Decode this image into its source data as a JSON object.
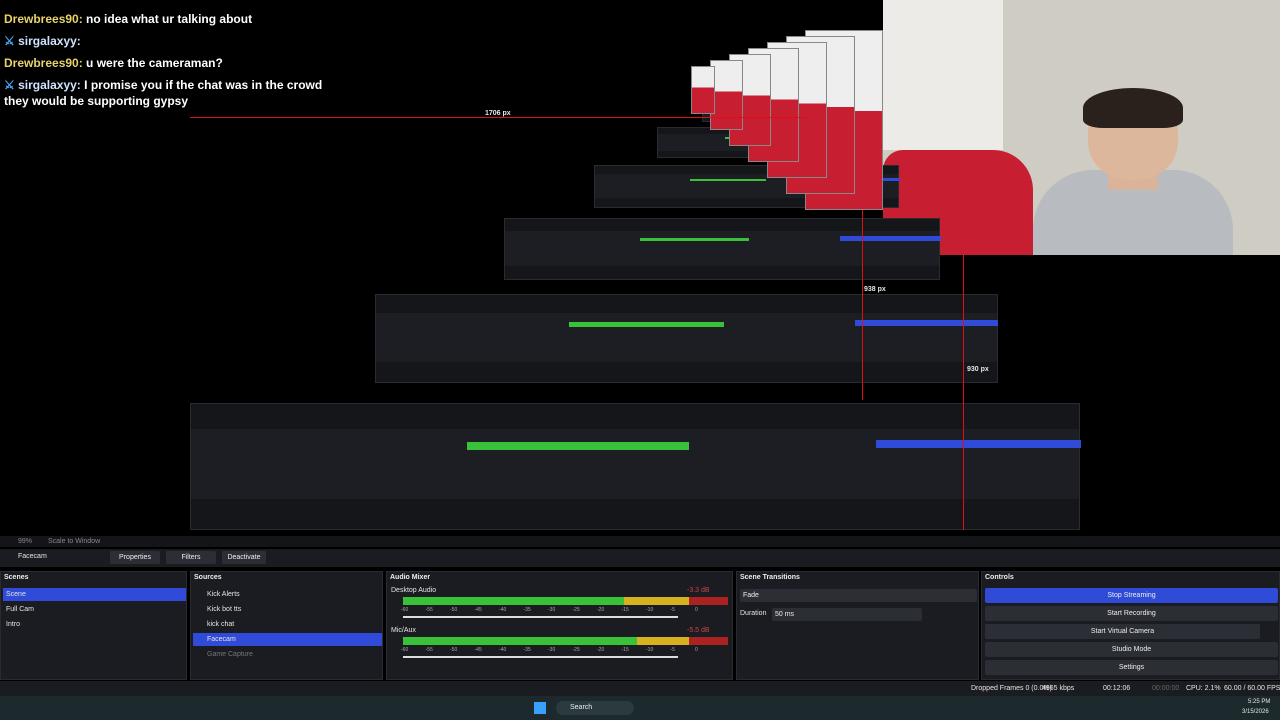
{
  "chat": [
    {
      "user": "Drewbrees90:",
      "text": "no idea what ur talking about"
    },
    {
      "user": "sirgalaxyy:"
    },
    {
      "user": "Drewbrees90:",
      "text": "u were the cameraman?"
    },
    {
      "user": "sirgalaxyy:",
      "text": "I promise you if the chat was in the crowd they would be supporting gypsy"
    }
  ],
  "preview_labels": [
    "1706 px",
    "938 px",
    "930 px"
  ],
  "view_bar": {
    "zoom": "99%",
    "mode": "Scale to Window"
  },
  "source_bar": {
    "source": "Facecam",
    "buttons": [
      "Properties",
      "Filters",
      "Deactivate"
    ]
  },
  "scenes": {
    "title": "Scenes",
    "items": [
      "Scene",
      "Full Cam",
      "Intro"
    ]
  },
  "sources": {
    "title": "Sources",
    "items": [
      "Kick Alerts",
      "Kick bot tts",
      "kick chat",
      "Facecam",
      "Game Capture"
    ]
  },
  "audio_mixer": {
    "title": "Audio Mixer",
    "channels": [
      {
        "name": "Desktop Audio",
        "level": "-3.3 dB"
      },
      {
        "name": "Mic/Aux",
        "level": "-5.5 dB"
      }
    ],
    "scale": [
      "-60",
      "-55",
      "-50",
      "-45",
      "-40",
      "-35",
      "-30",
      "-25",
      "-20",
      "-15",
      "-10",
      "-5",
      "0"
    ]
  },
  "scene_transitions": {
    "title": "Scene Transitions",
    "transition": "Fade",
    "duration_label": "Duration",
    "duration": "50 ms"
  },
  "controls": {
    "title": "Controls",
    "buttons": [
      "Stop Streaming",
      "Start Recording",
      "Start Virtual Camera",
      "Studio Mode",
      "Settings"
    ]
  },
  "status": [
    "Dropped Frames 0 (0.0%)",
    "4965 kbps",
    "00:12:06",
    "00:00:00",
    "CPU: 2.1%",
    "60.00 / 60.00 FPS"
  ],
  "taskbar": {
    "search": "Search",
    "time": "5:25 PM",
    "date": "3/15/2026"
  }
}
